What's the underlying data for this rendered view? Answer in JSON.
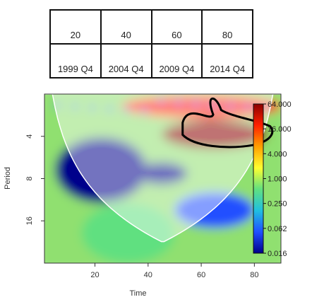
{
  "time_table": {
    "indices": [
      "20",
      "40",
      "60",
      "80"
    ],
    "quarters": [
      "1999 Q4",
      "2004 Q4",
      "2009 Q4",
      "2014 Q4"
    ]
  },
  "chart_data": {
    "type": "heatmap",
    "title": "",
    "xlabel": "Time",
    "ylabel": "Period",
    "xlim": [
      1,
      90
    ],
    "ylim_period": [
      2,
      32
    ],
    "y_scale": "log2 (reversed, small periods at top)",
    "x_ticks": [
      "20",
      "40",
      "60",
      "80"
    ],
    "x_tick_values": [
      20,
      40,
      60,
      80
    ],
    "y_ticks": [
      "4",
      "8",
      "16"
    ],
    "y_tick_values": [
      4,
      8,
      16
    ],
    "colorbar": {
      "scale": "log",
      "labels": [
        "64.000",
        "16.000",
        "4.000",
        "1.000",
        "0.250",
        "0.062",
        "0.016"
      ],
      "values": [
        64,
        16,
        4,
        1,
        0.25,
        0.0625,
        0.015625
      ],
      "colors_high_to_low": [
        "#8b0000",
        "#ff2000",
        "#ffa000",
        "#ffff30",
        "#60e080",
        "#20c0e0",
        "#2050ff",
        "#00008b"
      ]
    },
    "significance_contour": {
      "time_range": [
        53,
        86
      ],
      "period_range": [
        2,
        5
      ],
      "description": "black contour around dark-red high-power region"
    },
    "cone_of_influence": true,
    "power_regions": [
      {
        "time": [
          45,
          85
        ],
        "period": [
          3,
          5
        ],
        "level": 64
      },
      {
        "time": [
          30,
          90
        ],
        "period": [
          2,
          3
        ],
        "level": 16
      },
      {
        "time": [
          5,
          40
        ],
        "period": [
          4,
          12
        ],
        "level": 0.016
      },
      {
        "time": [
          35,
          55
        ],
        "period": [
          6,
          9
        ],
        "level": 0.016
      },
      {
        "time": [
          50,
          80
        ],
        "period": [
          10,
          18
        ],
        "level": 0.062
      },
      {
        "time": [
          15,
          50
        ],
        "period": [
          12,
          32
        ],
        "level": 1
      }
    ]
  }
}
